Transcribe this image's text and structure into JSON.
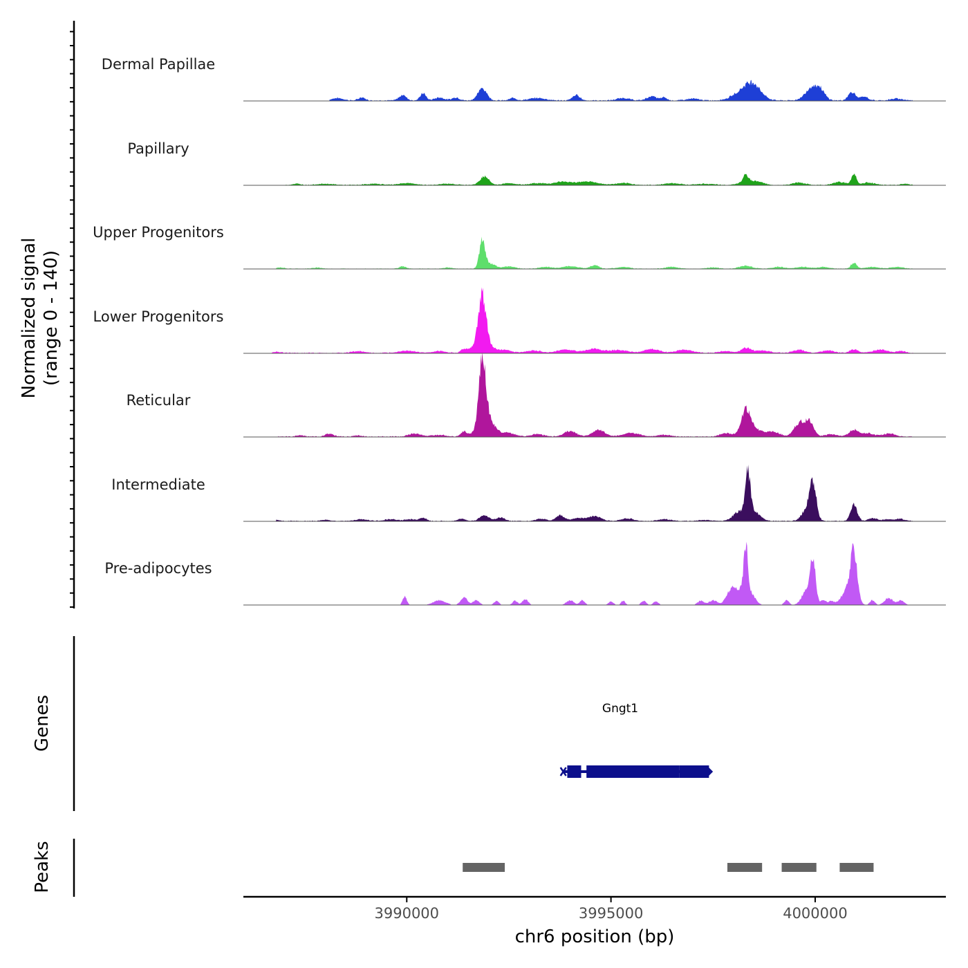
{
  "chart_data": {
    "type": "area",
    "title": "",
    "xlabel": "chr6 position (bp)",
    "ylabel": "Normalized signal",
    "ylabel_range": "(range 0 - 140)",
    "chromosome": "chr6",
    "xlim": [
      3986000,
      4003200
    ],
    "ylim": [
      0,
      140
    ],
    "x_ticks": [
      3990000,
      3995000,
      4000000
    ],
    "x_tick_labels": [
      "3990000",
      "3995000",
      "4000000"
    ],
    "tracks": [
      {
        "name": "Dermal Papillae",
        "color": "#1e3fd6",
        "peaks": [
          [
            3988300,
            4,
            140
          ],
          [
            3988900,
            5,
            80
          ],
          [
            3989900,
            9,
            90
          ],
          [
            3990400,
            12,
            70
          ],
          [
            3990800,
            5,
            120
          ],
          [
            3991200,
            5,
            90
          ],
          [
            3991850,
            20,
            110
          ],
          [
            3992600,
            4,
            80
          ],
          [
            3993200,
            4,
            200
          ],
          [
            3994150,
            9,
            90
          ],
          [
            3995300,
            4,
            150
          ],
          [
            3996000,
            7,
            120
          ],
          [
            3996300,
            5,
            70
          ],
          [
            3997000,
            3,
            150
          ],
          [
            3998300,
            18,
            260
          ],
          [
            3998500,
            16,
            180
          ],
          [
            3999950,
            24,
            170
          ],
          [
            4000150,
            8,
            100
          ],
          [
            4000900,
            14,
            90
          ],
          [
            4001200,
            6,
            100
          ],
          [
            4002000,
            3,
            150
          ]
        ],
        "noise": 1.8,
        "range": [
          3988100,
          4002400
        ]
      },
      {
        "name": "Papillary",
        "color": "#1fa31a",
        "peaks": [
          [
            3987300,
            2,
            100
          ],
          [
            3988000,
            2,
            200
          ],
          [
            3989200,
            2,
            200
          ],
          [
            3990000,
            3,
            200
          ],
          [
            3991000,
            2,
            200
          ],
          [
            3991900,
            14,
            110
          ],
          [
            3992500,
            3,
            150
          ],
          [
            3993200,
            3,
            200
          ],
          [
            3993800,
            5,
            200
          ],
          [
            3994400,
            6,
            250
          ],
          [
            3995300,
            3,
            200
          ],
          [
            3996500,
            3,
            200
          ],
          [
            3997300,
            2,
            200
          ],
          [
            3998300,
            5,
            180
          ],
          [
            3998300,
            12,
            60
          ],
          [
            3998600,
            5,
            150
          ],
          [
            3999600,
            4,
            150
          ],
          [
            4000600,
            5,
            150
          ],
          [
            4000950,
            19,
            60
          ],
          [
            4001300,
            4,
            150
          ],
          [
            4002200,
            2,
            100
          ]
        ],
        "noise": 1.2,
        "range": [
          3987000,
          4002400
        ]
      },
      {
        "name": "Upper Progenitors",
        "color": "#5ede6b",
        "peaks": [
          [
            3986900,
            2,
            100
          ],
          [
            3987800,
            2,
            100
          ],
          [
            3989900,
            4,
            80
          ],
          [
            3991000,
            2,
            100
          ],
          [
            3991850,
            47,
            70
          ],
          [
            3992050,
            8,
            120
          ],
          [
            3992500,
            4,
            150
          ],
          [
            3993400,
            3,
            150
          ],
          [
            3994000,
            4,
            200
          ],
          [
            3994600,
            6,
            100
          ],
          [
            3995300,
            3,
            150
          ],
          [
            3996500,
            3,
            150
          ],
          [
            3997500,
            2,
            150
          ],
          [
            3998300,
            5,
            150
          ],
          [
            3999100,
            3,
            150
          ],
          [
            3999700,
            3,
            150
          ],
          [
            4000200,
            3,
            150
          ],
          [
            4000950,
            10,
            70
          ],
          [
            4001400,
            3,
            150
          ],
          [
            4002000,
            3,
            150
          ]
        ],
        "noise": 1.0,
        "range": [
          3986800,
          4002400
        ]
      },
      {
        "name": "Lower Progenitors",
        "color": "#f21af0",
        "peaks": [
          [
            3986800,
            2,
            100
          ],
          [
            3988800,
            3,
            150
          ],
          [
            3990000,
            4,
            200
          ],
          [
            3990800,
            3,
            150
          ],
          [
            3991400,
            6,
            80
          ],
          [
            3991850,
            78,
            90
          ],
          [
            3991850,
            20,
            200
          ],
          [
            3992400,
            5,
            150
          ],
          [
            3993100,
            4,
            200
          ],
          [
            3993900,
            6,
            200
          ],
          [
            3994600,
            7,
            200
          ],
          [
            3995200,
            5,
            200
          ],
          [
            3996000,
            6,
            200
          ],
          [
            3996800,
            5,
            200
          ],
          [
            3997800,
            3,
            150
          ],
          [
            3998300,
            8,
            120
          ],
          [
            3998700,
            4,
            200
          ],
          [
            3999600,
            5,
            150
          ],
          [
            4000300,
            4,
            150
          ],
          [
            4000950,
            6,
            100
          ],
          [
            4001600,
            5,
            200
          ],
          [
            4002100,
            3,
            100
          ]
        ],
        "noise": 1.4,
        "range": [
          3986700,
          4002400
        ]
      },
      {
        "name": "Reticular",
        "color": "#b0169c",
        "peaks": [
          [
            3987400,
            2,
            100
          ],
          [
            3988100,
            5,
            100
          ],
          [
            3988800,
            2,
            100
          ],
          [
            3990200,
            5,
            150
          ],
          [
            3990800,
            3,
            150
          ],
          [
            3991400,
            8,
            80
          ],
          [
            3991850,
            105,
            80
          ],
          [
            3991950,
            35,
            180
          ],
          [
            3992500,
            6,
            150
          ],
          [
            3993200,
            4,
            150
          ],
          [
            3994000,
            9,
            150
          ],
          [
            3994700,
            11,
            150
          ],
          [
            3995500,
            6,
            200
          ],
          [
            3996300,
            3,
            150
          ],
          [
            3997800,
            6,
            120
          ],
          [
            3998300,
            37,
            110
          ],
          [
            3998500,
            12,
            250
          ],
          [
            3999000,
            6,
            150
          ],
          [
            3999600,
            22,
            120
          ],
          [
            3999850,
            26,
            110
          ],
          [
            4000400,
            4,
            150
          ],
          [
            4000950,
            11,
            120
          ],
          [
            4001300,
            5,
            150
          ],
          [
            4001800,
            5,
            150
          ]
        ],
        "noise": 1.5,
        "range": [
          3986800,
          4002400
        ]
      },
      {
        "name": "Intermediate",
        "color": "#3b0e5e",
        "peaks": [
          [
            3986800,
            2,
            100
          ],
          [
            3988000,
            2,
            100
          ],
          [
            3988900,
            3,
            150
          ],
          [
            3989600,
            3,
            150
          ],
          [
            3990100,
            3,
            150
          ],
          [
            3990400,
            5,
            80
          ],
          [
            3991350,
            4,
            80
          ],
          [
            3991900,
            9,
            120
          ],
          [
            3992300,
            6,
            100
          ],
          [
            3993300,
            4,
            120
          ],
          [
            3993750,
            10,
            100
          ],
          [
            3994200,
            5,
            150
          ],
          [
            3994600,
            8,
            150
          ],
          [
            3995400,
            4,
            150
          ],
          [
            3996300,
            3,
            150
          ],
          [
            3997300,
            2,
            150
          ],
          [
            3998150,
            16,
            150
          ],
          [
            3998350,
            70,
            60
          ],
          [
            3998500,
            15,
            150
          ],
          [
            3999950,
            58,
            80
          ],
          [
            3999800,
            20,
            120
          ],
          [
            4000950,
            27,
            80
          ],
          [
            4001400,
            5,
            100
          ],
          [
            4001800,
            3,
            150
          ],
          [
            4002100,
            3,
            100
          ]
        ],
        "noise": 1.3,
        "range": [
          3986800,
          4002400
        ]
      },
      {
        "name": "Pre-adipocytes",
        "color": "#c159f5",
        "peaks": [
          [
            3989950,
            14,
            50
          ],
          [
            3990800,
            8,
            150
          ],
          [
            3991400,
            13,
            80
          ],
          [
            3991700,
            8,
            80
          ],
          [
            3992200,
            7,
            60
          ],
          [
            3992650,
            7,
            60
          ],
          [
            3992900,
            10,
            70
          ],
          [
            3994000,
            8,
            90
          ],
          [
            3994300,
            8,
            60
          ],
          [
            3995000,
            6,
            60
          ],
          [
            3995300,
            7,
            50
          ],
          [
            3995800,
            7,
            60
          ],
          [
            3996100,
            6,
            60
          ],
          [
            3997200,
            7,
            80
          ],
          [
            3997500,
            8,
            100
          ],
          [
            3997900,
            14,
            100
          ],
          [
            3998300,
            80,
            50
          ],
          [
            3998100,
            25,
            150
          ],
          [
            3998400,
            20,
            120
          ],
          [
            3999300,
            8,
            60
          ],
          [
            3999950,
            72,
            60
          ],
          [
            3999800,
            25,
            120
          ],
          [
            4000200,
            8,
            80
          ],
          [
            4000400,
            6,
            60
          ],
          [
            4000950,
            80,
            80
          ],
          [
            4000800,
            25,
            150
          ],
          [
            4001400,
            8,
            60
          ],
          [
            4001800,
            12,
            100
          ],
          [
            4002100,
            8,
            80
          ]
        ],
        "noise": 0,
        "range": [
          3989800,
          4002300
        ]
      }
    ],
    "genes": [
      {
        "name": "Gngt1",
        "strand": "+",
        "start": 3993900,
        "end": 3997400,
        "exons": [
          [
            3993930,
            3994270
          ],
          [
            3994400,
            3996680
          ],
          [
            3996680,
            3997400
          ]
        ]
      }
    ],
    "peaks_track": [
      [
        3991370,
        3992400
      ],
      [
        3997850,
        3998700
      ],
      [
        3999180,
        4000030
      ],
      [
        4000600,
        4001430
      ]
    ],
    "panel_labels": {
      "genes": "Genes",
      "peaks": "Peaks"
    }
  }
}
